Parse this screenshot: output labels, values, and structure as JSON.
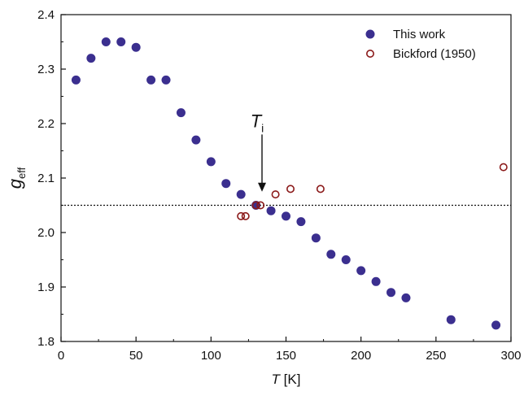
{
  "colors": {
    "this_work": "#3b2f8f",
    "bickford": "#8b1a1a",
    "axis": "#111111",
    "reference_line": "#111111",
    "arrow": "#111111"
  },
  "chart_data": {
    "type": "scatter",
    "title": "",
    "xlabel": {
      "main": "T",
      "unit": " [K]"
    },
    "ylabel": {
      "main": "g",
      "sub": "eff"
    },
    "xlim": [
      0,
      300
    ],
    "ylim": [
      1.8,
      2.4
    ],
    "x_ticks": [
      0,
      50,
      100,
      150,
      200,
      250,
      300
    ],
    "y_ticks": [
      1.8,
      1.9,
      2.0,
      2.1,
      2.2,
      2.3,
      2.4
    ],
    "grid": false,
    "legend_position": "top-right",
    "series": [
      {
        "name": "This work",
        "marker": "filled-circle",
        "x": [
          10,
          20,
          30,
          40,
          50,
          60,
          70,
          80,
          90,
          100,
          110,
          120,
          130,
          140,
          150,
          160,
          170,
          180,
          190,
          200,
          210,
          220,
          230,
          260,
          290
        ],
        "y": [
          2.28,
          2.32,
          2.35,
          2.35,
          2.34,
          2.28,
          2.28,
          2.22,
          2.17,
          2.13,
          2.09,
          2.07,
          2.05,
          2.04,
          2.03,
          2.02,
          1.99,
          1.96,
          1.95,
          1.93,
          1.91,
          1.89,
          1.88,
          1.84,
          1.83
        ]
      },
      {
        "name": "Bickford (1950)",
        "marker": "open-circle",
        "x": [
          120,
          123,
          130,
          133,
          143,
          153,
          173,
          295
        ],
        "y": [
          2.03,
          2.03,
          2.05,
          2.05,
          2.07,
          2.08,
          2.08,
          2.12
        ]
      }
    ],
    "reference_line": {
      "orientation": "horizontal",
      "y": 2.05,
      "style": "dotted"
    },
    "annotations": [
      {
        "label_main": "T",
        "label_sub": "i",
        "arrow_x": 134,
        "arrow_tip_y": 2.075,
        "arrow_tail_y": 2.18
      }
    ]
  }
}
